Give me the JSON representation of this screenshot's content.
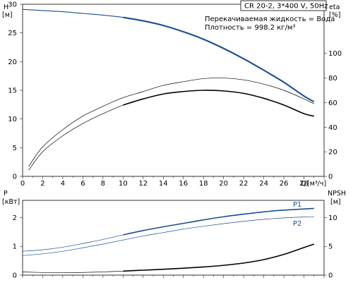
{
  "header": {
    "pump_model": "CR 20-2, 3*400 V, 50Hz",
    "liquid_line": "Перекачиваемая жидкость = Вода",
    "density_line": "Плотность = 998.2 кг/м³"
  },
  "chart_data": [
    {
      "type": "line",
      "x_axis": {
        "label": "Q",
        "unit": "[м³/ч]",
        "range": [
          0,
          30
        ],
        "ticks": [
          0,
          2,
          4,
          6,
          8,
          10,
          12,
          14,
          16,
          18,
          20,
          22,
          24,
          26,
          28
        ]
      },
      "y_axis_left": {
        "label": "H",
        "unit": "[м]",
        "range": [
          0,
          30
        ],
        "ticks": [
          0,
          5,
          10,
          15,
          20,
          25,
          30
        ]
      },
      "y_axis_right": {
        "label": "eta",
        "unit": "[%]",
        "range": [
          0,
          140
        ],
        "ticks": [
          0,
          20,
          40,
          60,
          80,
          100
        ]
      },
      "grid": false,
      "series": [
        {
          "id": "head",
          "axis": "left",
          "color": "#1a4f8f",
          "style": "solid-highlight",
          "highlight_range": [
            10,
            29
          ],
          "x": [
            0,
            2,
            4,
            6,
            8,
            10,
            12,
            14,
            16,
            18,
            20,
            22,
            24,
            26,
            28,
            29
          ],
          "y": [
            29.1,
            28.9,
            28.7,
            28.4,
            28.1,
            27.7,
            27.1,
            26.3,
            25.2,
            23.9,
            22.3,
            20.5,
            18.5,
            16.4,
            14.0,
            13.0
          ]
        },
        {
          "id": "eta_upper",
          "axis": "right",
          "color": "#000000",
          "style": "thin",
          "x": [
            0.6,
            2,
            4,
            6,
            8,
            10,
            12,
            14,
            16,
            18,
            20,
            22,
            24,
            26,
            28,
            29
          ],
          "y": [
            8,
            24,
            38,
            49,
            57,
            64,
            69,
            74,
            77,
            79.5,
            80,
            78.5,
            75,
            70,
            63,
            59
          ]
        },
        {
          "id": "eta",
          "axis": "right",
          "color": "#000000",
          "style": "thin-highlight",
          "highlight_range": [
            10,
            29
          ],
          "x": [
            0.6,
            2,
            4,
            6,
            8,
            10,
            12,
            14,
            16,
            18,
            20,
            22,
            24,
            26,
            28,
            29
          ],
          "y": [
            5,
            20,
            33,
            43,
            51,
            58,
            63,
            67,
            69,
            70,
            69.5,
            67.5,
            63.5,
            58,
            51,
            49
          ]
        }
      ]
    },
    {
      "type": "line",
      "x_axis": {
        "range": [
          0,
          30
        ]
      },
      "y_axis_left": {
        "label": "P",
        "unit": "[кВт]",
        "range": [
          0,
          2.6
        ],
        "ticks": [
          0,
          1,
          2
        ]
      },
      "y_axis_right": {
        "label": "NPSH",
        "unit": "[м]",
        "range": [
          0,
          13
        ],
        "ticks": [
          0,
          5,
          10
        ]
      },
      "grid": false,
      "series": [
        {
          "id": "P1",
          "name": "P1",
          "axis": "left",
          "color": "#1a4f8f",
          "style": "thin-highlight",
          "highlight_range": [
            10,
            29
          ],
          "x": [
            0,
            2,
            4,
            6,
            8,
            10,
            12,
            14,
            16,
            18,
            20,
            22,
            24,
            26,
            28,
            29
          ],
          "y": [
            0.83,
            0.88,
            0.97,
            1.1,
            1.24,
            1.4,
            1.55,
            1.68,
            1.8,
            1.92,
            2.03,
            2.12,
            2.2,
            2.26,
            2.3,
            2.32
          ]
        },
        {
          "id": "P2",
          "name": "P2",
          "axis": "left",
          "color": "#1a4f8f",
          "style": "thin",
          "x": [
            0,
            2,
            4,
            6,
            8,
            10,
            12,
            14,
            16,
            18,
            20,
            22,
            24,
            26,
            28,
            29
          ],
          "y": [
            0.68,
            0.74,
            0.83,
            0.95,
            1.08,
            1.22,
            1.36,
            1.48,
            1.6,
            1.7,
            1.79,
            1.87,
            1.94,
            1.99,
            2.02,
            2.03
          ]
        },
        {
          "id": "NPSH",
          "axis": "right",
          "color": "#000000",
          "style": "thin-highlight",
          "highlight_range": [
            10,
            29
          ],
          "x": [
            0,
            2,
            4,
            6,
            8,
            10,
            12,
            14,
            16,
            18,
            20,
            22,
            24,
            26,
            28,
            29
          ],
          "y": [
            0.55,
            0.45,
            0.42,
            0.46,
            0.56,
            0.7,
            0.86,
            1.02,
            1.2,
            1.42,
            1.7,
            2.1,
            2.7,
            3.6,
            4.8,
            5.4
          ]
        }
      ]
    }
  ]
}
